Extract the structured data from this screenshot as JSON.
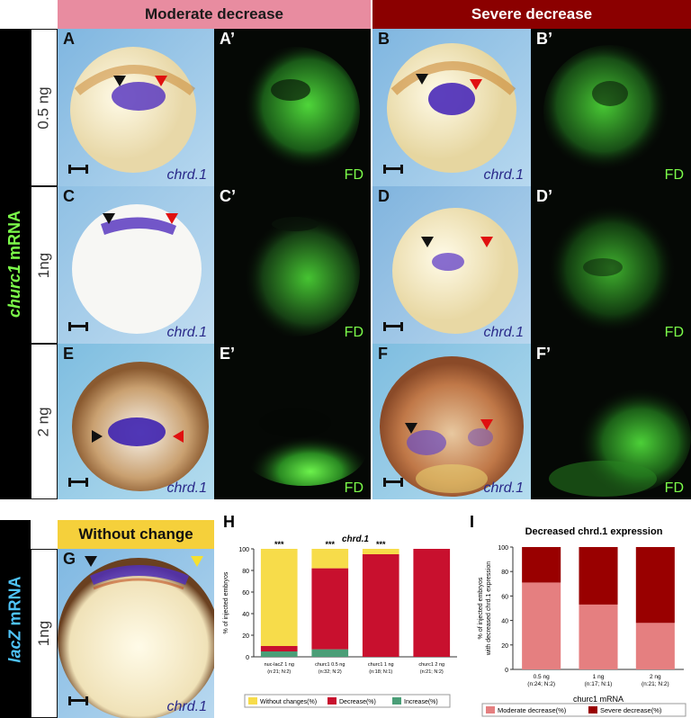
{
  "headers": {
    "moderate": "Moderate decrease",
    "severe": "Severe decrease",
    "without": "Without change"
  },
  "side_labels": {
    "gene_top": "churc1",
    "suffix_top": " mRNA",
    "gene_bottom": "lacZ",
    "suffix_bottom": " mRNA"
  },
  "doses": {
    "r1": "0.5 ng",
    "r2": "1ng",
    "r3": "2 ng",
    "r4": "1ng"
  },
  "panels": {
    "A": "A",
    "A2": "A’",
    "B": "B",
    "B2": "B’",
    "C": "C",
    "C2": "C’",
    "D": "D",
    "D2": "D’",
    "E": "E",
    "E2": "E’",
    "F": "F",
    "F2": "F’",
    "G": "G",
    "H": "H",
    "I": "I"
  },
  "captions": {
    "chrd": "chrd.1",
    "fd": "FD"
  },
  "colors": {
    "moderate_header": "#e88ca0",
    "severe_header": "#8b0000",
    "without_header": "#f5d03b",
    "green_text": "#7CFC4A",
    "blue_text": "#4fc3f7",
    "yellow": "#f7dc4a",
    "red": "#c8102e",
    "green": "#4a9e77",
    "moderate": "#e57f80",
    "severe": "#990000"
  },
  "chart_data": [
    {
      "type": "bar",
      "title": "chrd.1",
      "ylabel": "% of injected embryos",
      "ylim": [
        0,
        100
      ],
      "categories": [
        "nuc-lacZ 1 ng\n(n:21; N:2)",
        "churc1 0.5 ng\n(n:32; N:2)",
        "churc1 1 ng\n(n:18; N:1)",
        "churc1 2 ng\n(n:21; N:2)"
      ],
      "cat_lines": [
        [
          "nuc-lacZ 1 ng",
          "(n:21; N:2)"
        ],
        [
          "churc1 0.5 ng",
          "(n:32; N:2)"
        ],
        [
          "churc1 1 ng",
          "(n:18; N:1)"
        ],
        [
          "churc1 2 ng",
          "(n:21; N:2)"
        ]
      ],
      "significance": [
        "***",
        "***",
        "***",
        ""
      ],
      "series": [
        {
          "name": "Increase(%)",
          "values": [
            5,
            7,
            0,
            0
          ]
        },
        {
          "name": "Decrease(%)",
          "values": [
            5,
            75,
            95,
            100
          ]
        },
        {
          "name": "Without changes(%)",
          "values": [
            90,
            18,
            5,
            0
          ]
        }
      ],
      "legend": [
        "Without changes(%)",
        "Decrease(%)",
        "Increase(%)"
      ]
    },
    {
      "type": "bar",
      "title": "Decreased chrd.1 expression",
      "ylabel_lines": [
        "% of injected embryos",
        "with decreased chrd.1 expression"
      ],
      "xlabel": "churc1 mRNA",
      "ylim": [
        0,
        100
      ],
      "categories": [
        "0.5 ng\n(n:24; N:2)",
        "1 ng\n(n:17; N:1)",
        "2 ng\n(n:21; N:2)"
      ],
      "cat_lines": [
        [
          "0.5 ng",
          "(n:24; N:2)"
        ],
        [
          "1 ng",
          "(n:17; N:1)"
        ],
        [
          "2 ng",
          "(n:21; N:2)"
        ]
      ],
      "series": [
        {
          "name": "Moderate decrease(%)",
          "values": [
            71,
            53,
            38
          ]
        },
        {
          "name": "Severe decrease(%)",
          "values": [
            29,
            47,
            62
          ]
        }
      ]
    }
  ]
}
